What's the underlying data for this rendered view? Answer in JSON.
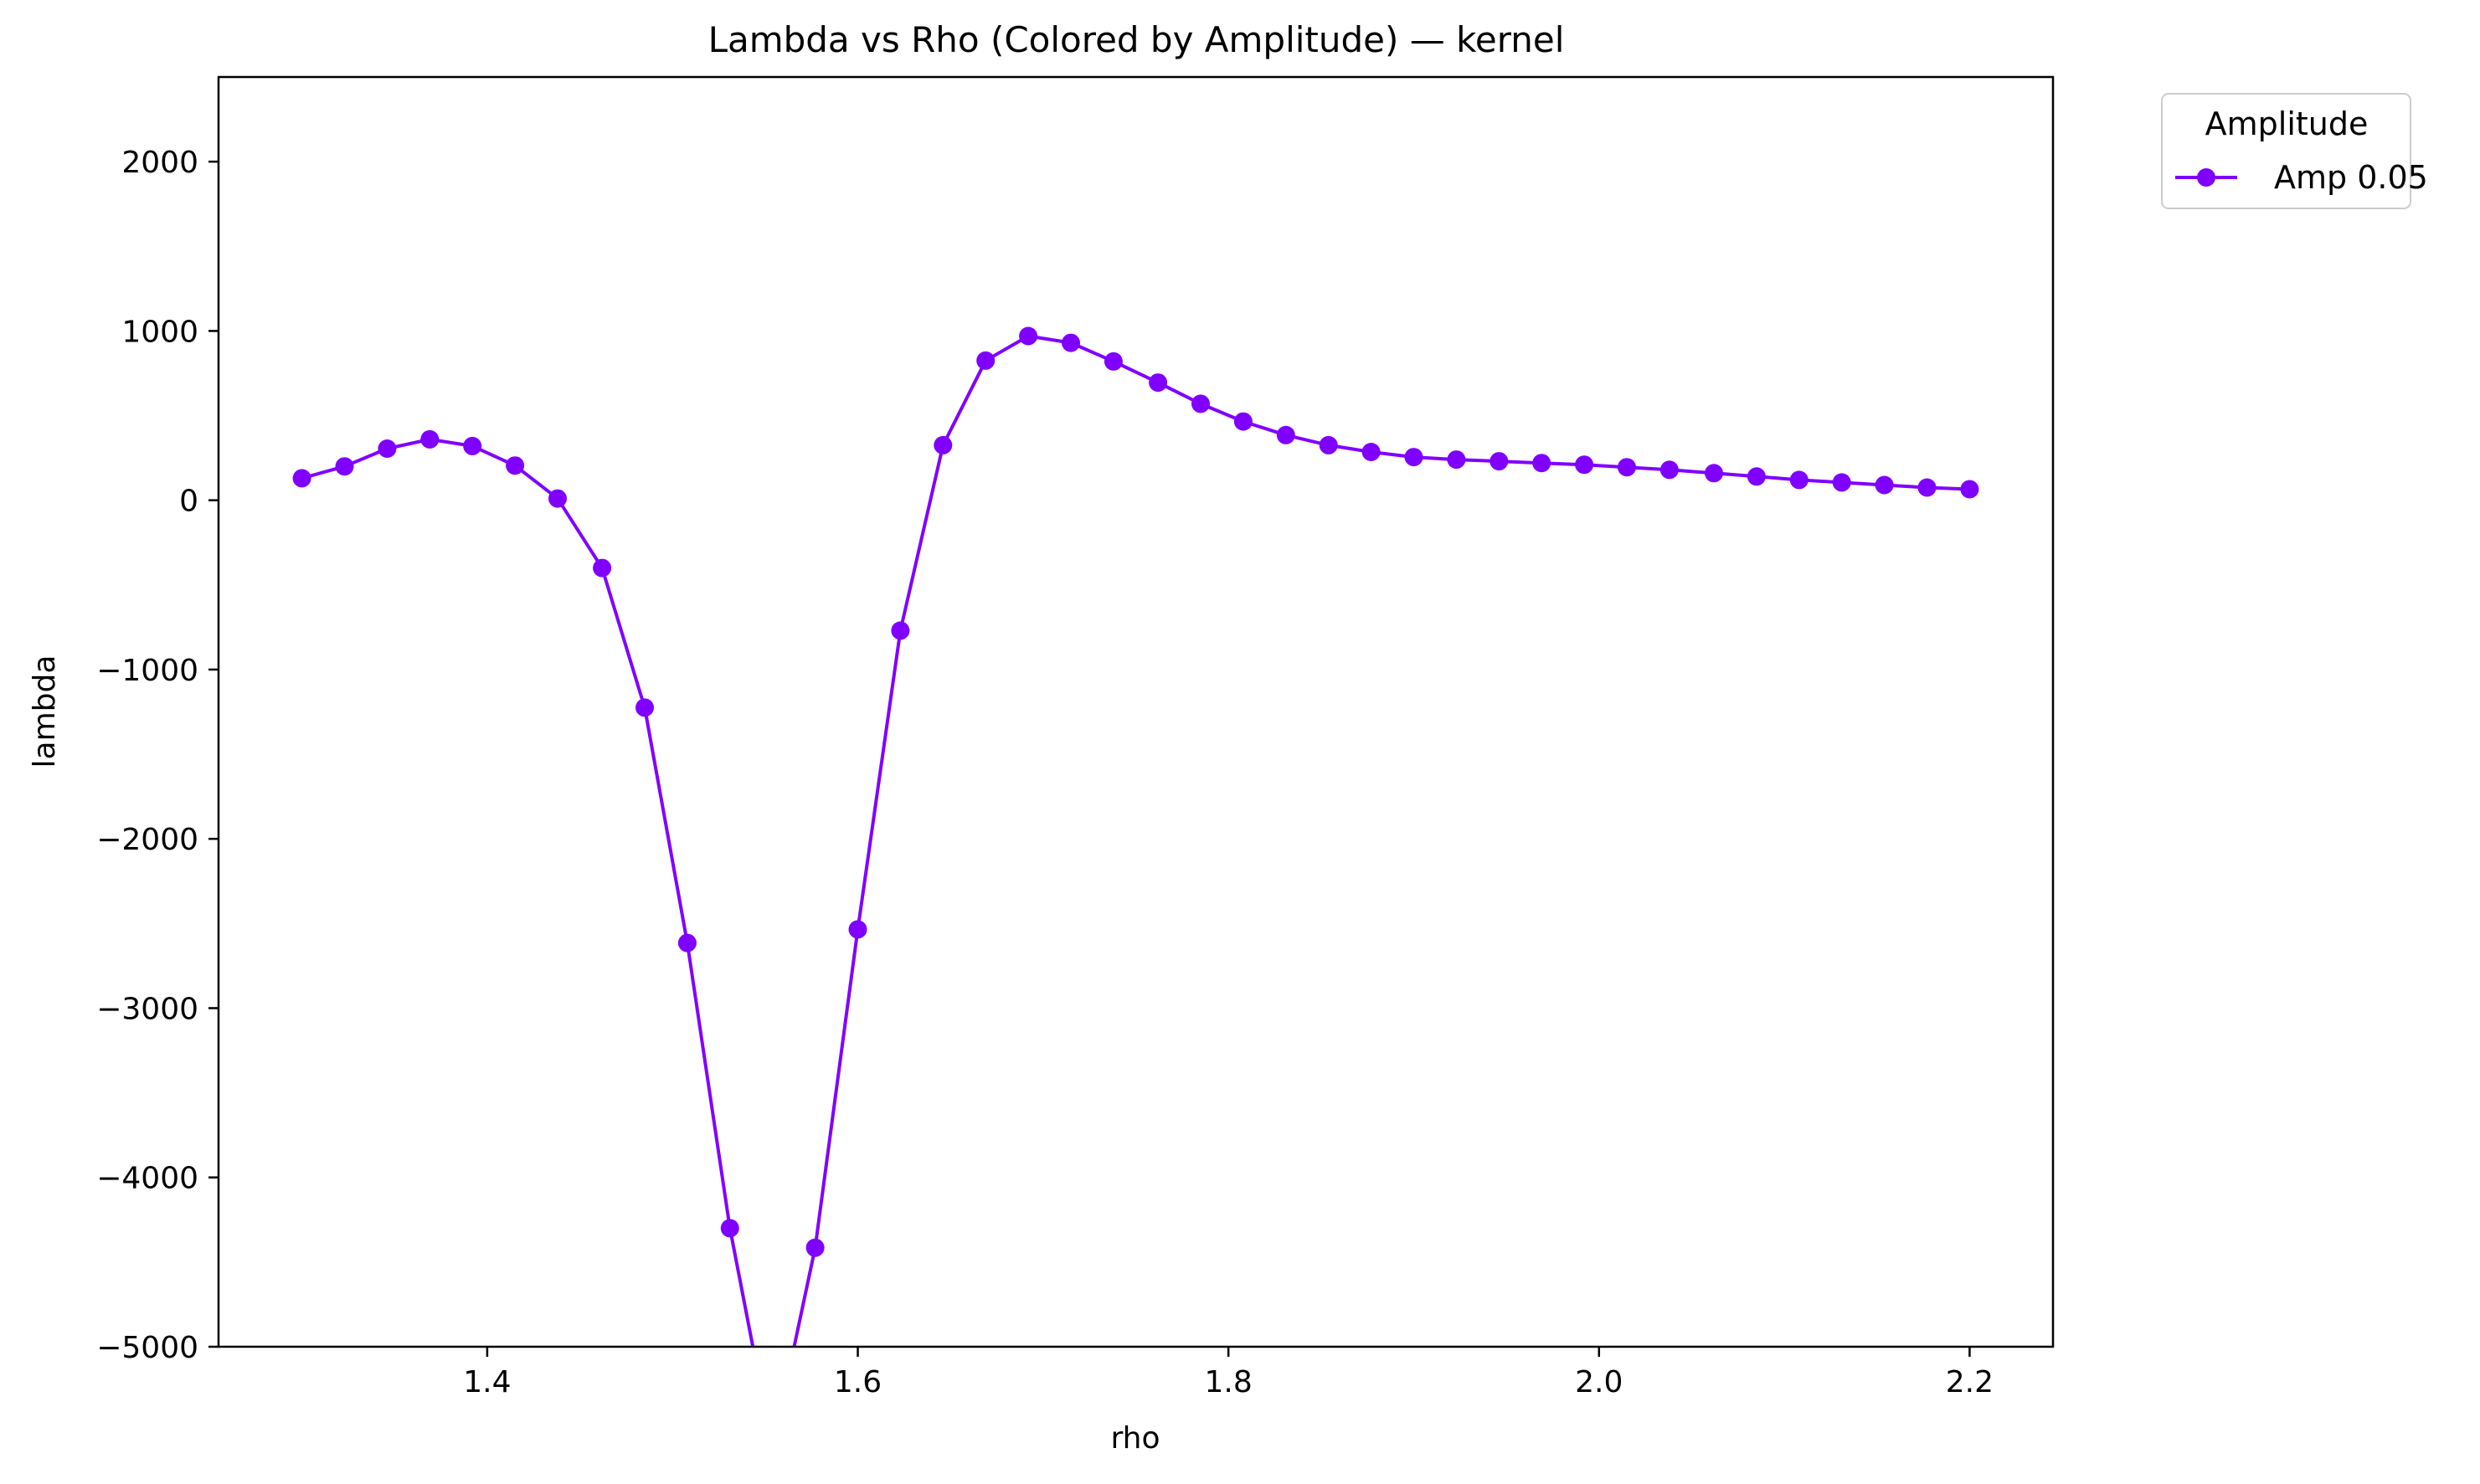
{
  "chart_data": {
    "type": "line",
    "title": "Lambda vs Rho (Colored by Amplitude) — kernel",
    "xlabel": "rho",
    "ylabel": "lambda",
    "xlim": [
      1.255,
      2.245
    ],
    "ylim": [
      -5000,
      2500
    ],
    "xticks": [
      1.4,
      1.6,
      1.8,
      2.0,
      2.2
    ],
    "xtick_labels": [
      "1.4",
      "1.6",
      "1.8",
      "2.0",
      "2.2"
    ],
    "yticks": [
      2000,
      1000,
      0,
      -1000,
      -2000,
      -3000,
      -4000,
      -5000
    ],
    "ytick_labels": [
      "2000",
      "1000",
      "0",
      "−1000",
      "−2000",
      "−3000",
      "−4000",
      "−5000"
    ],
    "grid": false,
    "legend": {
      "title": "Amplitude",
      "placement": "outside-top-right"
    },
    "series": [
      {
        "name": "Amp 0.05",
        "color": "#8000ff",
        "marker": "circle",
        "x": [
          1.3,
          1.323,
          1.346,
          1.369,
          1.392,
          1.415,
          1.438,
          1.462,
          1.485,
          1.508,
          1.531,
          1.554,
          1.577,
          1.6,
          1.623,
          1.646,
          1.669,
          1.692,
          1.715,
          1.738,
          1.762,
          1.785,
          1.808,
          1.831,
          1.854,
          1.877,
          1.9,
          1.923,
          1.946,
          1.969,
          1.992,
          2.015,
          2.038,
          2.062,
          2.085,
          2.108,
          2.131,
          2.154,
          2.177,
          2.2
        ],
        "y": [
          130,
          200,
          305,
          360,
          320,
          205,
          10,
          -400,
          -1225,
          -2615,
          -4300,
          -5600,
          -4415,
          -2535,
          -770,
          325,
          825,
          970,
          930,
          820,
          695,
          570,
          465,
          385,
          325,
          285,
          255,
          240,
          230,
          220,
          210,
          195,
          180,
          160,
          140,
          120,
          105,
          90,
          75,
          65
        ]
      }
    ]
  }
}
